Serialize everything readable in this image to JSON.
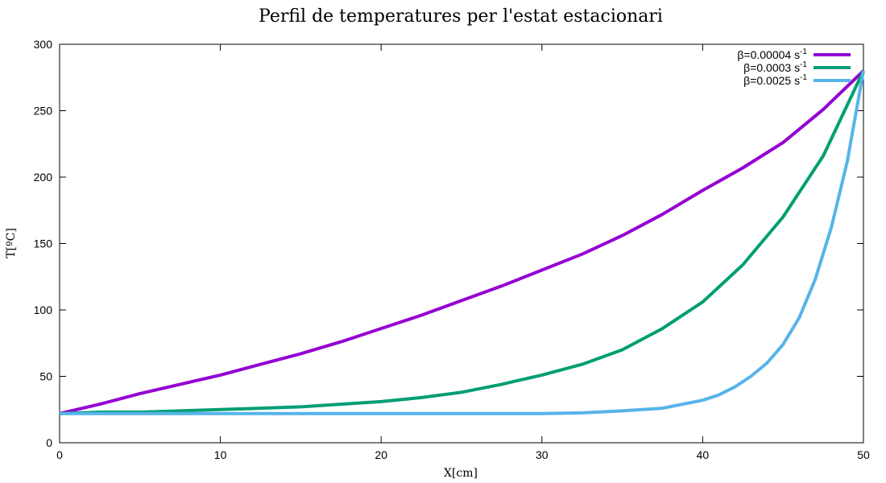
{
  "chart_data": {
    "type": "line",
    "title": "Perfil de temperatures per l'estat estacionari",
    "xlabel": "X[cm]",
    "ylabel": "T[ºC]",
    "xlim": [
      0,
      50
    ],
    "ylim": [
      0,
      300
    ],
    "xticks": [
      0,
      10,
      20,
      30,
      40,
      50
    ],
    "yticks": [
      0,
      50,
      100,
      150,
      200,
      250,
      300
    ],
    "grid": false,
    "legend_position": "top-right",
    "series": [
      {
        "name": "β=0.00004 s",
        "name_exponent": "-1",
        "color": "#9400d3",
        "x": [
          0,
          2.5,
          5,
          7.5,
          10,
          12.5,
          15,
          17.5,
          20,
          22.5,
          25,
          27.5,
          30,
          32.5,
          35,
          37.5,
          40,
          42.5,
          45,
          47.5,
          50
        ],
        "y": [
          22,
          29,
          37,
          44,
          51,
          59,
          67,
          76,
          86,
          96,
          107,
          118,
          130,
          142,
          156,
          172,
          190,
          207,
          226,
          251,
          280
        ]
      },
      {
        "name": "β=0.0003 s",
        "name_exponent": "-1",
        "color": "#009e73",
        "x": [
          0,
          2.5,
          5,
          7.5,
          10,
          12.5,
          15,
          17.5,
          20,
          22.5,
          25,
          27.5,
          30,
          32.5,
          35,
          37.5,
          40,
          42.5,
          45,
          47.5,
          50
        ],
        "y": [
          22,
          23,
          23,
          24,
          25,
          26,
          27,
          29,
          31,
          34,
          38,
          44,
          51,
          59,
          70,
          86,
          106,
          134,
          170,
          216,
          280
        ]
      },
      {
        "name": "β=0.0025 s",
        "name_exponent": "-1",
        "color": "#56b4e9",
        "x": [
          0,
          5,
          10,
          15,
          20,
          25,
          30,
          32.5,
          35,
          37.5,
          40,
          41,
          42,
          43,
          44,
          45,
          46,
          47,
          48,
          49,
          50
        ],
        "y": [
          22,
          22,
          22,
          22,
          22,
          22,
          22,
          22.5,
          24,
          26,
          32,
          36,
          42,
          50,
          60,
          74,
          94,
          123,
          162,
          212,
          280
        ]
      }
    ]
  }
}
